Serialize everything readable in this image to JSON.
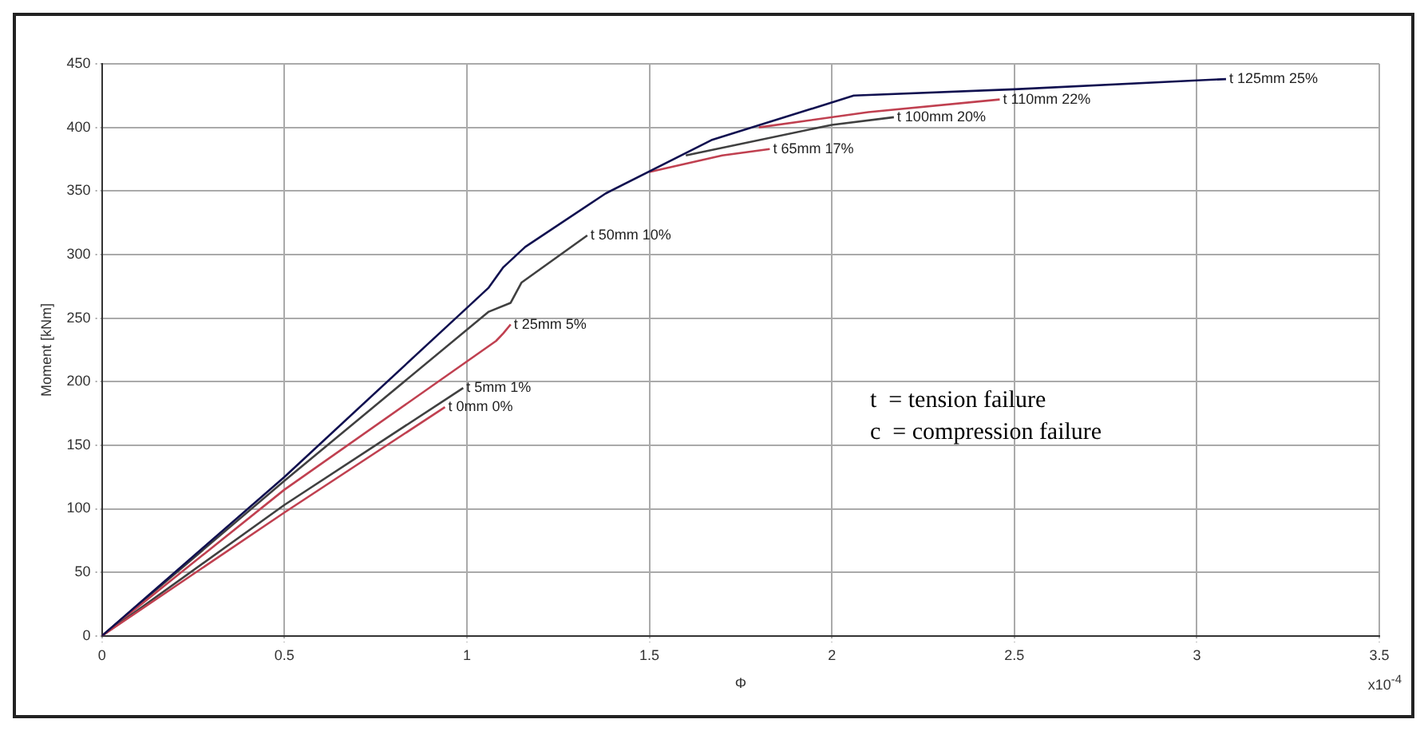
{
  "chart_data": {
    "type": "line",
    "xlabel": "Φ",
    "ylabel": "Moment [kNm]",
    "xlim": [
      0,
      3.5
    ],
    "xticks": [
      0,
      0.5,
      1,
      1.5,
      2,
      2.5,
      3,
      3.5
    ],
    "ylim": [
      0,
      450
    ],
    "yticks": [
      0,
      50,
      100,
      150,
      200,
      250,
      300,
      350,
      400,
      450
    ],
    "grid": true,
    "legend": false,
    "marker": "none",
    "line_style": "solid",
    "series": [
      {
        "color": "#101050",
        "x": [
          0,
          0.5,
          1.0,
          1.06,
          1.1,
          1.16,
          1.38,
          1.67,
          2.06,
          2.5,
          3.0,
          3.08
        ],
        "values": [
          0,
          125,
          258,
          274,
          290,
          306,
          348,
          390,
          425,
          430,
          437,
          438
        ]
      },
      {
        "color": "#c04050",
        "x": [
          0,
          0.5,
          0.94
        ],
        "values": [
          0,
          97,
          180
        ]
      },
      {
        "color": "#404040",
        "x": [
          0,
          0.5,
          0.99
        ],
        "values": [
          0,
          103,
          195
        ]
      },
      {
        "color": "#c04050",
        "x": [
          0,
          0.5,
          1.08,
          1.1,
          1.12
        ],
        "values": [
          0,
          115,
          232,
          238,
          245
        ]
      },
      {
        "color": "#404040",
        "x": [
          0,
          0.5,
          1.06,
          1.12,
          1.15,
          1.33
        ],
        "values": [
          0,
          122,
          255,
          262,
          278,
          315
        ]
      },
      {
        "color": "#c04050",
        "x": [
          1.5,
          1.7,
          1.83
        ],
        "values": [
          365,
          378,
          383
        ]
      },
      {
        "color": "#404040",
        "x": [
          1.6,
          2.0,
          2.17
        ],
        "values": [
          378,
          402,
          408
        ]
      },
      {
        "color": "#c04050",
        "x": [
          1.8,
          2.1,
          2.46
        ],
        "values": [
          400,
          412,
          422
        ]
      }
    ],
    "annotations": [
      {
        "text": "t 0mm 0%",
        "x": 0.94,
        "y": 180
      },
      {
        "text": "t 5mm 1%",
        "x": 0.99,
        "y": 195
      },
      {
        "text": "t 25mm 5%",
        "x": 1.12,
        "y": 245
      },
      {
        "text": "t 50mm 10%",
        "x": 1.33,
        "y": 315
      },
      {
        "text": "t 65mm 17%",
        "x": 1.83,
        "y": 383
      },
      {
        "text": "t 100mm 20%",
        "x": 2.17,
        "y": 408
      },
      {
        "text": "t 110mm 22%",
        "x": 2.46,
        "y": 422
      },
      {
        "text": "t 125mm 25%",
        "x": 3.08,
        "y": 438
      },
      "x10$^{-4}$",
      "t  = tension failure",
      "c  = compression failure"
    ]
  }
}
